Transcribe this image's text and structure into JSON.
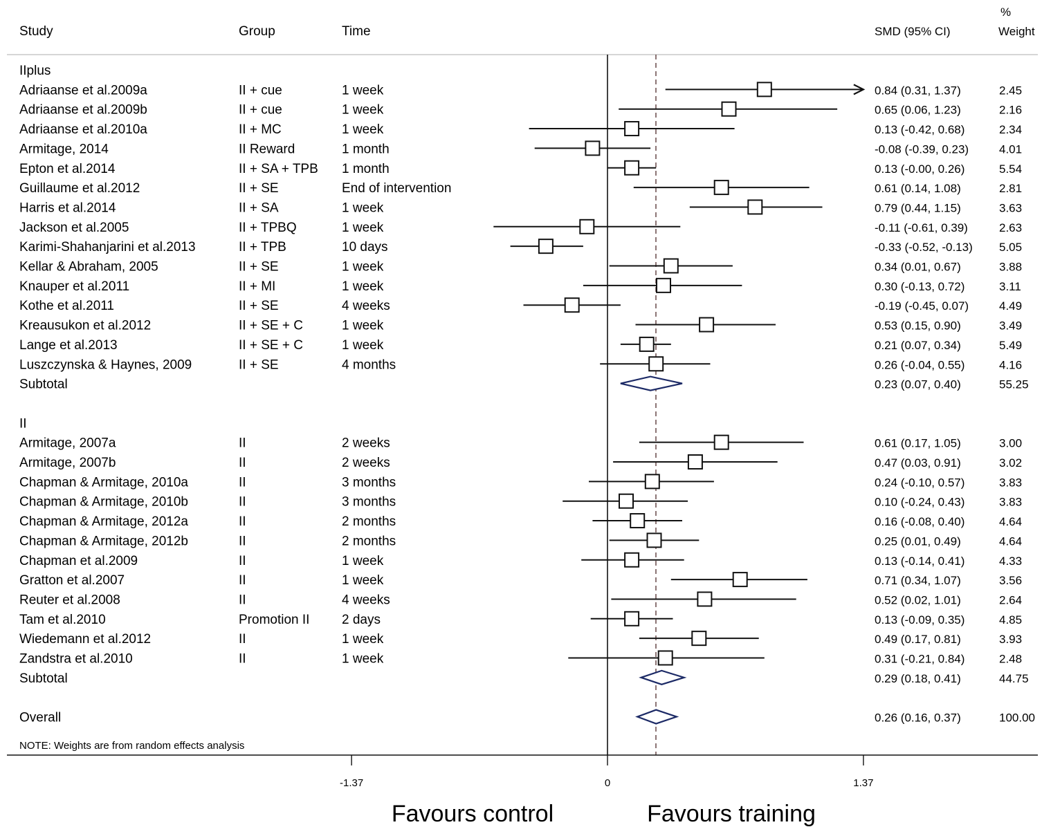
{
  "chart_data": {
    "type": "forest",
    "header": {
      "study": "Study",
      "group": "Group",
      "time": "Time",
      "ci": "SMD (95% CI)",
      "weight_pct": "%",
      "weight": "Weight"
    },
    "xaxis": {
      "ticks": [
        -1.37,
        0,
        1.37
      ],
      "tick_labels": [
        "-1.37",
        "0",
        "1.37"
      ],
      "xlim": [
        -1.37,
        1.37
      ],
      "left_label": "Favours control",
      "right_label": "Favours training",
      "reference_line": 0,
      "overall_line": 0.26
    },
    "note": "NOTE: Weights are from random effects analysis",
    "rows": [
      {
        "kind": "group",
        "label": "IIplus"
      },
      {
        "kind": "study",
        "study": "Adriaanse et al.2009a",
        "group": "II + cue",
        "time": "1 week",
        "est": 0.84,
        "lo": 0.31,
        "hi": 1.37,
        "ci_text": "0.84 (0.31, 1.37)",
        "weight": "2.45",
        "arrow_right": true
      },
      {
        "kind": "study",
        "study": "Adriaanse et al.2009b",
        "group": "II + cue",
        "time": "1 week",
        "est": 0.65,
        "lo": 0.06,
        "hi": 1.23,
        "ci_text": "0.65 (0.06, 1.23)",
        "weight": "2.16"
      },
      {
        "kind": "study",
        "study": "Adriaanse et al.2010a",
        "group": "II + MC",
        "time": "1 week",
        "est": 0.13,
        "lo": -0.42,
        "hi": 0.68,
        "ci_text": "0.13 (-0.42, 0.68)",
        "weight": "2.34"
      },
      {
        "kind": "study",
        "study": "Armitage, 2014",
        "group": "II Reward",
        "time": "1 month",
        "est": -0.08,
        "lo": -0.39,
        "hi": 0.23,
        "ci_text": "-0.08 (-0.39, 0.23)",
        "weight": "4.01"
      },
      {
        "kind": "study",
        "study": "Epton et al.2014",
        "group": "II + SA + TPB",
        "time": "1 month",
        "est": 0.13,
        "lo": 0.0,
        "hi": 0.26,
        "ci_text": "0.13 (-0.00, 0.26)",
        "weight": "5.54"
      },
      {
        "kind": "study",
        "study": "Guillaume et al.2012",
        "group": "II + SE",
        "time": "End of intervention",
        "est": 0.61,
        "lo": 0.14,
        "hi": 1.08,
        "ci_text": "0.61 (0.14, 1.08)",
        "weight": "2.81"
      },
      {
        "kind": "study",
        "study": "Harris et al.2014",
        "group": "II + SA",
        "time": "1 week",
        "est": 0.79,
        "lo": 0.44,
        "hi": 1.15,
        "ci_text": "0.79 (0.44, 1.15)",
        "weight": "3.63"
      },
      {
        "kind": "study",
        "study": "Jackson et al.2005",
        "group": "II + TPBQ",
        "time": "1 week",
        "est": -0.11,
        "lo": -0.61,
        "hi": 0.39,
        "ci_text": "-0.11 (-0.61, 0.39)",
        "weight": "2.63"
      },
      {
        "kind": "study",
        "study": "Karimi-Shahanjarini et al.2013",
        "group": "II + TPB",
        "time": "10 days",
        "est": -0.33,
        "lo": -0.52,
        "hi": -0.13,
        "ci_text": "-0.33 (-0.52, -0.13)",
        "weight": "5.05"
      },
      {
        "kind": "study",
        "study": "Kellar & Abraham, 2005",
        "group": "II + SE",
        "time": "1 week",
        "est": 0.34,
        "lo": 0.01,
        "hi": 0.67,
        "ci_text": "0.34 (0.01, 0.67)",
        "weight": "3.88"
      },
      {
        "kind": "study",
        "study": "Knauper et al.2011",
        "group": "II + MI",
        "time": "1 week",
        "est": 0.3,
        "lo": -0.13,
        "hi": 0.72,
        "ci_text": "0.30 (-0.13, 0.72)",
        "weight": "3.11"
      },
      {
        "kind": "study",
        "study": "Kothe et al.2011",
        "group": "II + SE",
        "time": "4 weeks",
        "est": -0.19,
        "lo": -0.45,
        "hi": 0.07,
        "ci_text": "-0.19 (-0.45, 0.07)",
        "weight": "4.49"
      },
      {
        "kind": "study",
        "study": "Kreausukon et al.2012",
        "group": "II + SE + C",
        "time": "1 week",
        "est": 0.53,
        "lo": 0.15,
        "hi": 0.9,
        "ci_text": "0.53 (0.15, 0.90)",
        "weight": "3.49"
      },
      {
        "kind": "study",
        "study": "Lange et al.2013",
        "group": "II + SE + C",
        "time": "1 week",
        "est": 0.21,
        "lo": 0.07,
        "hi": 0.34,
        "ci_text": "0.21 (0.07, 0.34)",
        "weight": "5.49"
      },
      {
        "kind": "study",
        "study": "Luszczynska & Haynes, 2009",
        "group": "II + SE",
        "time": "4 months",
        "est": 0.26,
        "lo": -0.04,
        "hi": 0.55,
        "ci_text": "0.26 (-0.04, 0.55)",
        "weight": "4.16"
      },
      {
        "kind": "subtotal",
        "study": "Subtotal",
        "est": 0.23,
        "lo": 0.07,
        "hi": 0.4,
        "ci_text": "0.23 (0.07, 0.40)",
        "weight": "55.25"
      },
      {
        "kind": "blank"
      },
      {
        "kind": "group",
        "label": "II"
      },
      {
        "kind": "study",
        "study": "Armitage, 2007a",
        "group": "II",
        "time": "2 weeks",
        "est": 0.61,
        "lo": 0.17,
        "hi": 1.05,
        "ci_text": "0.61 (0.17, 1.05)",
        "weight": "3.00"
      },
      {
        "kind": "study",
        "study": "Armitage, 2007b",
        "group": "II",
        "time": "2 weeks",
        "est": 0.47,
        "lo": 0.03,
        "hi": 0.91,
        "ci_text": "0.47 (0.03, 0.91)",
        "weight": "3.02"
      },
      {
        "kind": "study",
        "study": "Chapman & Armitage, 2010a",
        "group": "II",
        "time": "3 months",
        "est": 0.24,
        "lo": -0.1,
        "hi": 0.57,
        "ci_text": "0.24 (-0.10, 0.57)",
        "weight": "3.83"
      },
      {
        "kind": "study",
        "study": "Chapman & Armitage, 2010b",
        "group": "II",
        "time": "3 months",
        "est": 0.1,
        "lo": -0.24,
        "hi": 0.43,
        "ci_text": "0.10 (-0.24, 0.43)",
        "weight": "3.83"
      },
      {
        "kind": "study",
        "study": "Chapman & Armitage, 2012a",
        "group": "II",
        "time": "2 months",
        "est": 0.16,
        "lo": -0.08,
        "hi": 0.4,
        "ci_text": "0.16 (-0.08, 0.40)",
        "weight": "4.64"
      },
      {
        "kind": "study",
        "study": "Chapman & Armitage, 2012b",
        "group": "II",
        "time": "2 months",
        "est": 0.25,
        "lo": 0.01,
        "hi": 0.49,
        "ci_text": "0.25 (0.01, 0.49)",
        "weight": "4.64"
      },
      {
        "kind": "study",
        "study": "Chapman et al.2009",
        "group": "II",
        "time": "1 week",
        "est": 0.13,
        "lo": -0.14,
        "hi": 0.41,
        "ci_text": "0.13 (-0.14, 0.41)",
        "weight": "4.33"
      },
      {
        "kind": "study",
        "study": "Gratton et al.2007",
        "group": "II",
        "time": "1 week",
        "est": 0.71,
        "lo": 0.34,
        "hi": 1.07,
        "ci_text": "0.71 (0.34, 1.07)",
        "weight": "3.56"
      },
      {
        "kind": "study",
        "study": "Reuter et al.2008",
        "group": "II",
        "time": "4 weeks",
        "est": 0.52,
        "lo": 0.02,
        "hi": 1.01,
        "ci_text": "0.52 (0.02, 1.01)",
        "weight": "2.64"
      },
      {
        "kind": "study",
        "study": "Tam et al.2010",
        "group": "Promotion II",
        "time": "2 days",
        "est": 0.13,
        "lo": -0.09,
        "hi": 0.35,
        "ci_text": "0.13 (-0.09, 0.35)",
        "weight": "4.85"
      },
      {
        "kind": "study",
        "study": "Wiedemann et al.2012",
        "group": "II",
        "time": "1 week",
        "est": 0.49,
        "lo": 0.17,
        "hi": 0.81,
        "ci_text": "0.49 (0.17, 0.81)",
        "weight": "3.93"
      },
      {
        "kind": "study",
        "study": "Zandstra et al.2010",
        "group": "II",
        "time": "1 week",
        "est": 0.31,
        "lo": -0.21,
        "hi": 0.84,
        "ci_text": "0.31 (-0.21, 0.84)",
        "weight": "2.48"
      },
      {
        "kind": "subtotal",
        "study": "Subtotal",
        "est": 0.29,
        "lo": 0.18,
        "hi": 0.41,
        "ci_text": "0.29 (0.18, 0.41)",
        "weight": "44.75"
      },
      {
        "kind": "blank"
      },
      {
        "kind": "overall",
        "study": "Overall",
        "est": 0.26,
        "lo": 0.16,
        "hi": 0.37,
        "ci_text": "0.26 (0.16, 0.37)",
        "weight": "100.00"
      }
    ],
    "colors": {
      "lines": "#111111",
      "diamond": "#1c2a66",
      "dashed": "#5a3a3a"
    }
  }
}
